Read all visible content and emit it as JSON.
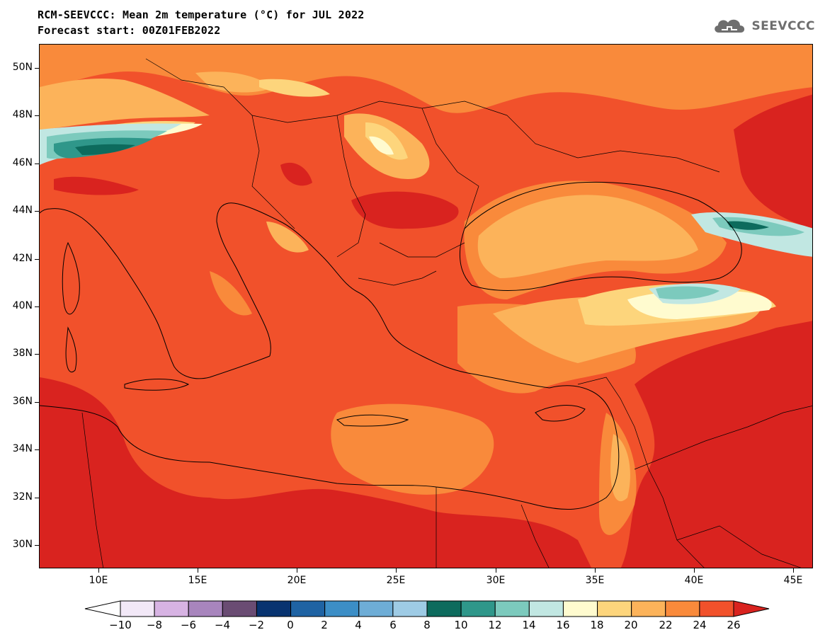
{
  "title_line1": "RCM-SEEVCCC: Mean 2m temperature (°C) for JUL 2022",
  "title_line2": "Forecast start: 00Z01FEB2022",
  "logo_text": "SEEVCCC",
  "axes": {
    "lat_labels": [
      "50N",
      "48N",
      "46N",
      "44N",
      "42N",
      "40N",
      "38N",
      "36N",
      "34N",
      "32N",
      "30N"
    ],
    "lon_labels": [
      "10E",
      "15E",
      "20E",
      "25E",
      "30E",
      "35E",
      "40E",
      "45E"
    ]
  },
  "colorbar": {
    "levels": [
      "−10",
      "−8",
      "−6",
      "−4",
      "−2",
      "0",
      "2",
      "4",
      "6",
      "8",
      "10",
      "12",
      "14",
      "16",
      "18",
      "20",
      "22",
      "24",
      "26"
    ],
    "colors": [
      "#f2e8f7",
      "#d7b3e3",
      "#a885bd",
      "#6a4c73",
      "#083370",
      "#1f63a3",
      "#3c8ec6",
      "#6eadd6",
      "#9ecbe5",
      "#0d6b5d",
      "#2f978a",
      "#7ccabd",
      "#c1e7e2",
      "#fffbcf",
      "#fdd57c",
      "#fcb35a",
      "#f98a3b",
      "#f1512b"
    ],
    "under_color": "#ffffff",
    "over_color": "#d9231f"
  },
  "palette": {
    "t20": "#fcb35a",
    "t22": "#f98a3b",
    "t24": "#f1512b",
    "t26": "#d9231f",
    "t18": "#fdd57c",
    "t16": "#fffbcf",
    "t14": "#c1e7e2",
    "t12": "#7ccabd",
    "t10": "#2f978a",
    "t8": "#0d6b5d"
  }
}
